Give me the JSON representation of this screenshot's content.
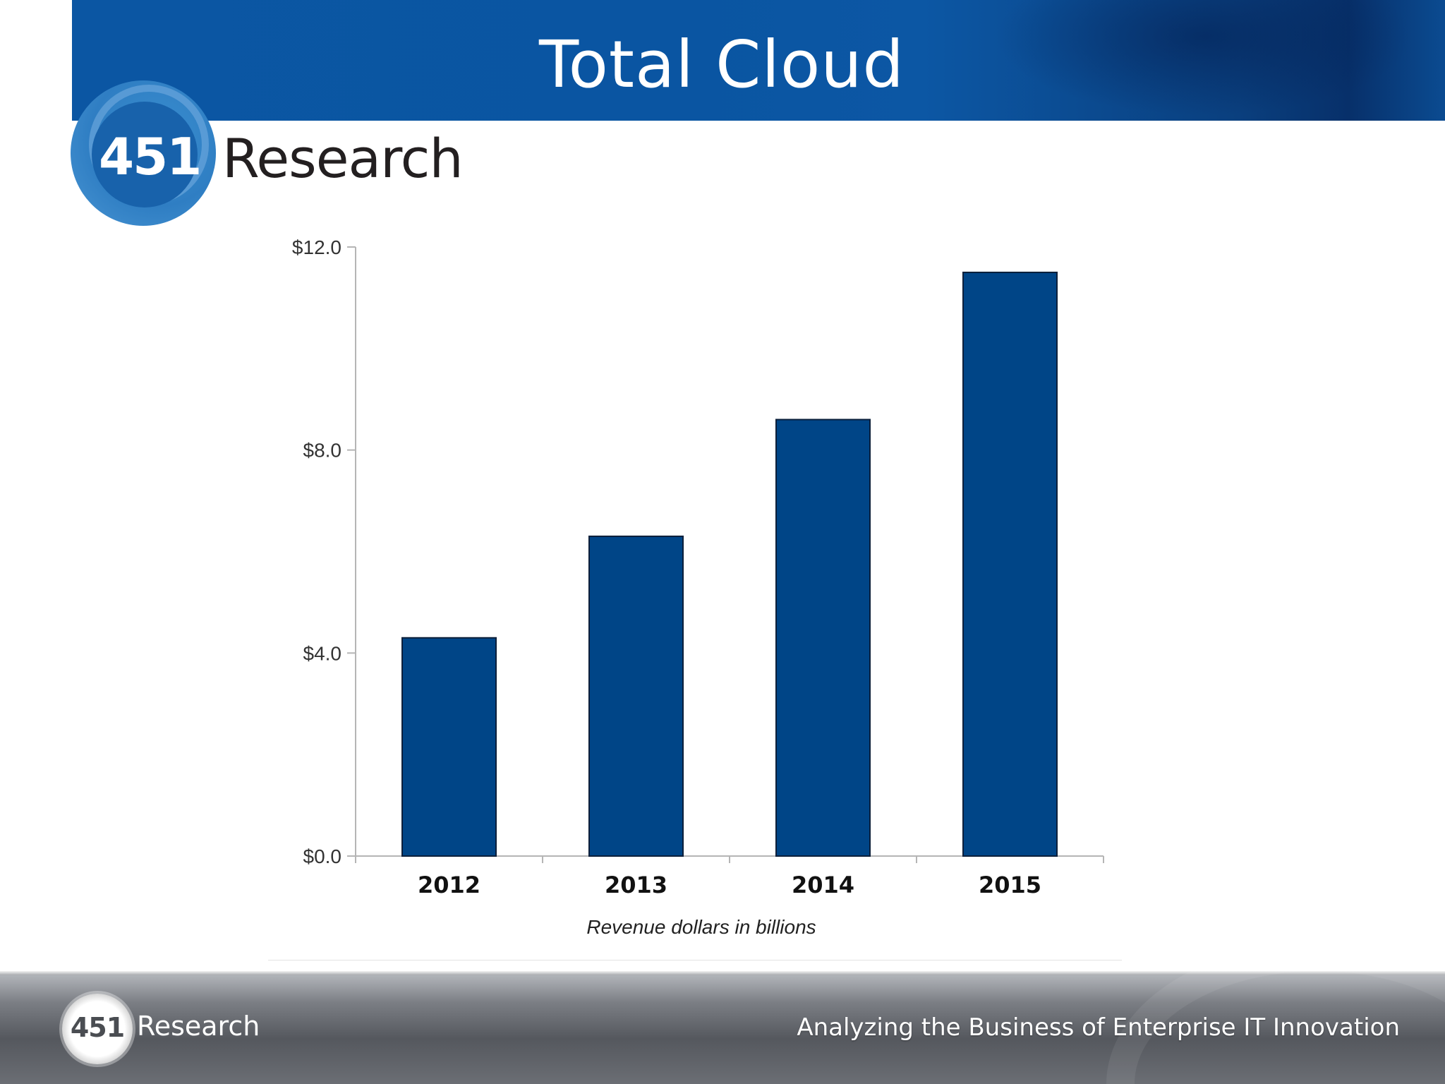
{
  "header": {
    "title": "Total Cloud"
  },
  "logo": {
    "number": "451",
    "word": "Research"
  },
  "footer": {
    "logo_number": "451",
    "logo_word": "Research",
    "tagline": "Analyzing the Business of Enterprise IT Innovation"
  },
  "colors": {
    "bar": "#004587",
    "header": "#0a55a2"
  },
  "chart_data": {
    "type": "bar",
    "categories": [
      "2012",
      "2013",
      "2014",
      "2015"
    ],
    "values": [
      4.3,
      6.3,
      8.6,
      11.5
    ],
    "y_ticks": [
      0,
      4,
      8,
      12
    ],
    "y_tick_labels": [
      "$0.0",
      "$4.0",
      "$8.0",
      "$12.0"
    ],
    "ylim": [
      0,
      12
    ],
    "xlabel": "Revenue dollars in billions",
    "ylabel": "",
    "grid": false,
    "legend": "none"
  }
}
